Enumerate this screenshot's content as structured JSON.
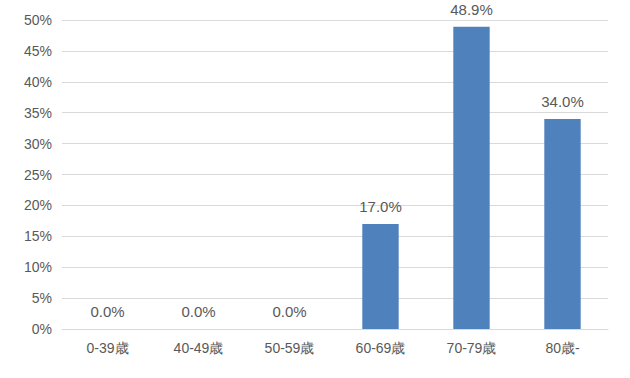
{
  "chart_data": {
    "type": "bar",
    "categories": [
      "0-39歳",
      "40-49歳",
      "50-59歳",
      "60-69歳",
      "70-79歳",
      "80歳-"
    ],
    "values": [
      0.0,
      0.0,
      0.0,
      17.0,
      48.9,
      34.0
    ],
    "value_labels": [
      "0.0%",
      "0.0%",
      "0.0%",
      "17.0%",
      "48.9%",
      "34.0%"
    ],
    "color": "#4f81bd",
    "ylim": [
      0,
      50
    ],
    "yticks": [
      {
        "value": 0,
        "label": "0%"
      },
      {
        "value": 5,
        "label": "5%"
      },
      {
        "value": 10,
        "label": "10%"
      },
      {
        "value": 15,
        "label": "15%"
      },
      {
        "value": 20,
        "label": "20%"
      },
      {
        "value": 25,
        "label": "25%"
      },
      {
        "value": 30,
        "label": "30%"
      },
      {
        "value": 35,
        "label": "35%"
      },
      {
        "value": 40,
        "label": "40%"
      },
      {
        "value": 45,
        "label": "45%"
      },
      {
        "value": 50,
        "label": "50%"
      }
    ],
    "grid": true,
    "data_labels": true
  }
}
